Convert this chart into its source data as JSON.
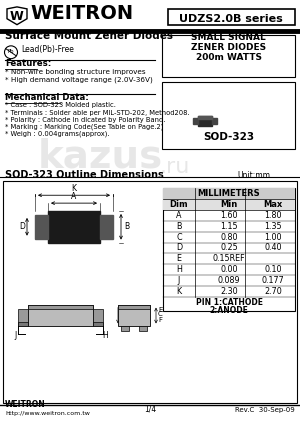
{
  "title_company": "WEITRON",
  "part_number": "UDZS2.0B series",
  "subtitle": "Surface Mount Zener Diodes",
  "lead_free": "Lead(Pb)-Free",
  "small_signal_line1": "SMALL SIGNAL",
  "small_signal_line2": "ZENER DIODES",
  "small_signal_line3": "200m WATTS",
  "package_name": "SOD-323",
  "features_title": "Features:",
  "features": [
    "* Non-wire bonding structure improves",
    "* High demand voltage range (2.0V-36V)"
  ],
  "mech_title": "Mechanical Data:",
  "mech_data": [
    "* Case : SOD-323 Molded plastic.",
    "* Terminals : Solder able per MIL-STD-202, Method208.",
    "* Polarity : Cathode In dicated by Polarity Band.",
    "* Marking : Marking Code(See Table on Page.2)",
    "* Weigh : 0.004grams(approx)."
  ],
  "outline_title": "SOD-323 Outline Dimensions",
  "unit_label": "Unit:mm",
  "table_header": [
    "Dim",
    "Min",
    "Max"
  ],
  "table_header2": "MILLIMETERS",
  "table_rows": [
    [
      "A",
      "1.60",
      "1.80"
    ],
    [
      "B",
      "1.15",
      "1.35"
    ],
    [
      "C",
      "0.80",
      "1.00"
    ],
    [
      "D",
      "0.25",
      "0.40"
    ],
    [
      "E",
      "0.15REF",
      ""
    ],
    [
      "H",
      "0.00",
      "0.10"
    ],
    [
      "J",
      "0.089",
      "0.177"
    ],
    [
      "K",
      "2.30",
      "2.70"
    ]
  ],
  "pin_note_line1": "PIN 1:CATHODE",
  "pin_note_line2": "2:ANODE",
  "footer_company": "WEITRON",
  "footer_url": "http://www.weitron.com.tw",
  "footer_page": "1/4",
  "footer_rev": "Rev.C  30-Sep-09",
  "bg_color": "#ffffff"
}
